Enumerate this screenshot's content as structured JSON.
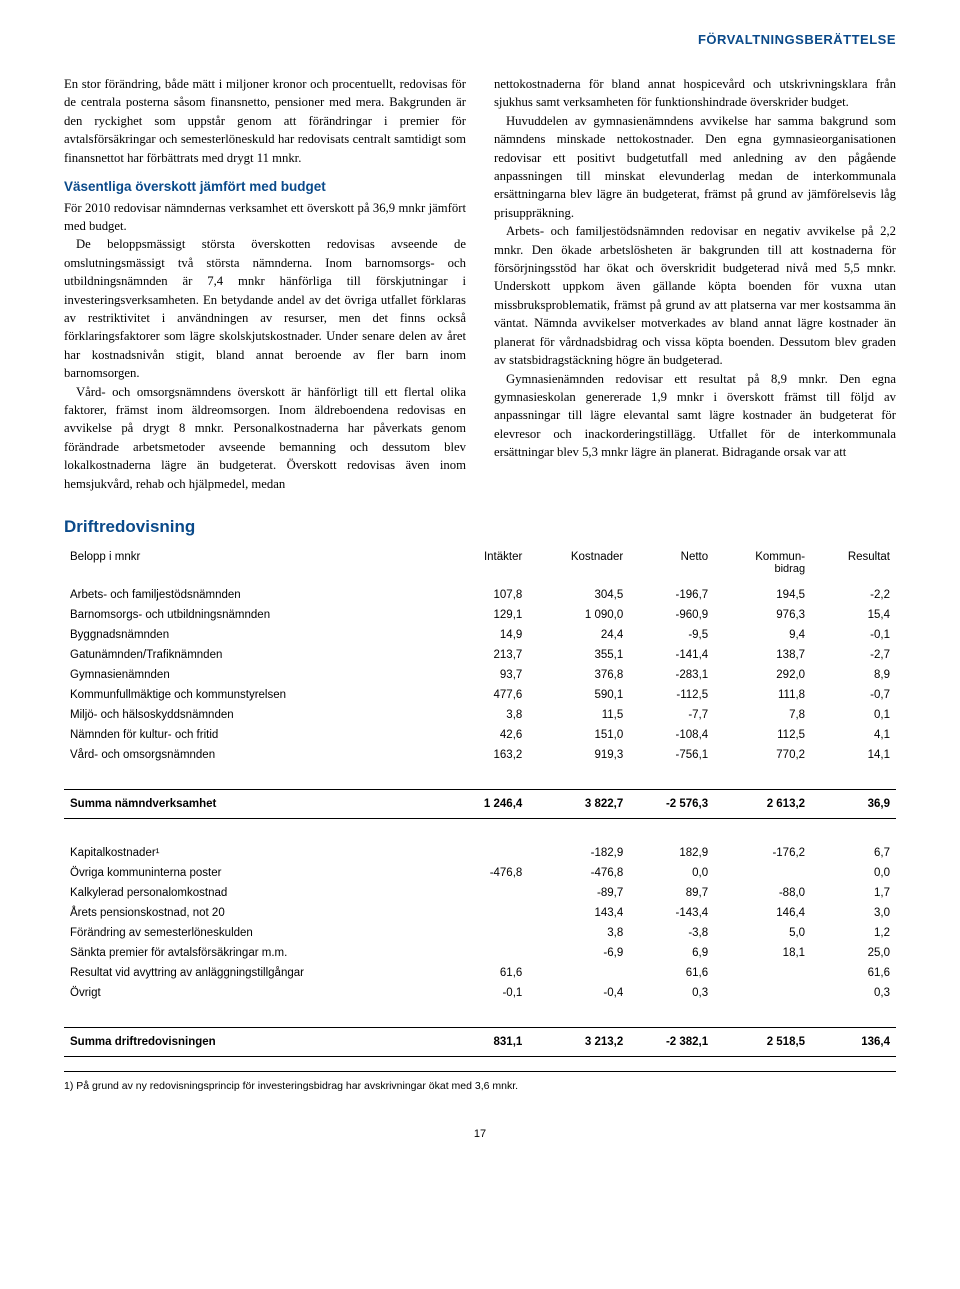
{
  "header": {
    "title": "FÖRVALTNINGSBERÄTTELSE"
  },
  "body": {
    "left": {
      "p1": "En stor förändring, både mätt i miljoner kronor och procentuellt, redovisas för de centrala posterna såsom finansnetto, pensioner med mera. Bakgrunden är den ryckighet som uppstår genom att förändringar i premier för avtalsförsäkringar och semesterlöneskuld har redovisats centralt samtidigt som finansnettot har förbättrats med drygt 11 mnkr.",
      "sub": "Väsentliga överskott jämfört med budget",
      "p2": "För 2010 redovisar nämndernas verksamhet ett överskott på 36,9 mnkr jämfört med budget.",
      "p3": "De beloppsmässigt största överskotten redovisas avseende de omslutningsmässigt två största nämnderna. Inom barnomsorgs- och utbildningsnämnden är 7,4 mnkr hänförliga till förskjutningar i investeringsverksamheten. En betydande andel av det övriga utfallet förklaras av restriktivitet i användningen av resurser, men det finns också förklaringsfaktorer som lägre skolskjutskostnader. Under senare delen av året har kostnadsnivån stigit, bland annat beroende av fler barn inom barnomsorgen.",
      "p4": "Vård- och omsorgsnämndens överskott är hänförligt till ett flertal olika faktorer, främst inom äldreomsorgen. Inom äldreboendena redovisas en avvikelse på drygt 8 mnkr. Personalkostnaderna har påverkats genom förändrade arbetsmetoder avseende bemanning och dessutom blev lokalkostnaderna lägre än budgeterat. Överskott redovisas även inom hemsjukvård, rehab och hjälpmedel, medan"
    },
    "right": {
      "p1": "nettokostnaderna för bland annat hospicevård och utskrivningsklara från sjukhus samt verksamheten för funktionshindrade överskrider budget.",
      "p2": "Huvuddelen av gymnasienämndens avvikelse har samma bakgrund som nämndens minskade nettokostnader. Den egna gymnasieorganisationen redovisar ett positivt budgetutfall med anledning av den pågående anpassningen till minskat elevunderlag medan de interkommunala ersättningarna blev lägre än budgeterat, främst på grund av jämförelsevis låg prisuppräkning.",
      "p3": "Arbets- och familjestödsnämnden redovisar en negativ avvikelse på 2,2 mnkr. Den ökade arbetslösheten är bakgrunden till att kostnaderna för försörjningsstöd har ökat och överskridit budgeterad nivå med 5,5 mnkr. Underskott uppkom även gällande köpta boenden för vuxna utan missbruksproblematik, främst på grund av att platserna var mer kostsamma än väntat. Nämnda avvikelser motverkades av bland annat lägre kostnader än planerat för vårdnadsbidrag och vissa köpta boenden. Dessutom blev graden av statsbidragstäckning högre än budgeterad.",
      "p4": "Gymnasienämnden redovisar ett resultat på 8,9 mnkr. Den egna gymnasieskolan genererade 1,9 mnkr i överskott främst till följd av anpassningar till lägre elevantal samt lägre kostnader än budgeterat för elevresor och inackorderingstillägg. Utfallet för de interkommunala ersättningar blev 5,3 mnkr lägre än planerat. Bidragande orsak var att"
    }
  },
  "table": {
    "title": "Driftredovisning",
    "unit_label": "Belopp i mnkr",
    "columns": [
      "Intäkter",
      "Kostnader",
      "Netto",
      "Kommun-\nbidrag",
      "Resultat"
    ],
    "col_sub": "bidrag",
    "rows": [
      {
        "label": "Arbets- och familjestödsnämnden",
        "v": [
          "107,8",
          "304,5",
          "-196,7",
          "194,5",
          "-2,2"
        ]
      },
      {
        "label": "Barnomsorgs- och utbildningsnämnden",
        "v": [
          "129,1",
          "1 090,0",
          "-960,9",
          "976,3",
          "15,4"
        ]
      },
      {
        "label": "Byggnadsnämnden",
        "v": [
          "14,9",
          "24,4",
          "-9,5",
          "9,4",
          "-0,1"
        ]
      },
      {
        "label": "Gatunämnden/Trafiknämnden",
        "v": [
          "213,7",
          "355,1",
          "-141,4",
          "138,7",
          "-2,7"
        ]
      },
      {
        "label": "Gymnasienämnden",
        "v": [
          "93,7",
          "376,8",
          "-283,1",
          "292,0",
          "8,9"
        ]
      },
      {
        "label": "Kommunfullmäktige och kommunstyrelsen",
        "v": [
          "477,6",
          "590,1",
          "-112,5",
          "111,8",
          "-0,7"
        ]
      },
      {
        "label": "Miljö- och hälsoskyddsnämnden",
        "v": [
          "3,8",
          "11,5",
          "-7,7",
          "7,8",
          "0,1"
        ]
      },
      {
        "label": "Nämnden för kultur- och fritid",
        "v": [
          "42,6",
          "151,0",
          "-108,4",
          "112,5",
          "4,1"
        ]
      },
      {
        "label": "Vård- och omsorgsnämnden",
        "v": [
          "163,2",
          "919,3",
          "-756,1",
          "770,2",
          "14,1"
        ]
      }
    ],
    "subtotal1": {
      "label": "Summa nämndverksamhet",
      "v": [
        "1 246,4",
        "3 822,7",
        "-2 576,3",
        "2 613,2",
        "36,9"
      ]
    },
    "rows2": [
      {
        "label": "Kapitalkostnader¹",
        "v": [
          "",
          "-182,9",
          "182,9",
          "-176,2",
          "6,7"
        ]
      },
      {
        "label": "Övriga kommuninterna poster",
        "v": [
          "-476,8",
          "-476,8",
          "0,0",
          "",
          "0,0"
        ]
      },
      {
        "label": "Kalkylerad personalomkostnad",
        "v": [
          "",
          "-89,7",
          "89,7",
          "-88,0",
          "1,7"
        ]
      },
      {
        "label": "Årets pensionskostnad, not 20",
        "v": [
          "",
          "143,4",
          "-143,4",
          "146,4",
          "3,0"
        ]
      },
      {
        "label": "Förändring av semesterlöneskulden",
        "v": [
          "",
          "3,8",
          "-3,8",
          "5,0",
          "1,2"
        ]
      },
      {
        "label": "Sänkta premier för avtalsförsäkringar m.m.",
        "v": [
          "",
          "-6,9",
          "6,9",
          "18,1",
          "25,0"
        ]
      },
      {
        "label": "Resultat vid avyttring av anläggningstillgångar",
        "v": [
          "61,6",
          "",
          "61,6",
          "",
          "61,6"
        ]
      },
      {
        "label": "Övrigt",
        "v": [
          "-0,1",
          "-0,4",
          "0,3",
          "",
          "0,3"
        ]
      }
    ],
    "total": {
      "label": "Summa driftredovisningen",
      "v": [
        "831,1",
        "3 213,2",
        "-2 382,1",
        "2 518,5",
        "136,4"
      ]
    },
    "footnote": "1) På grund av ny redovisningsprincip för investeringsbidrag har avskrivningar ökat med 3,6 mnkr."
  },
  "page_number": "17",
  "colors": {
    "brand": "#0a4a8a",
    "text": "#000000",
    "bg": "#ffffff"
  }
}
